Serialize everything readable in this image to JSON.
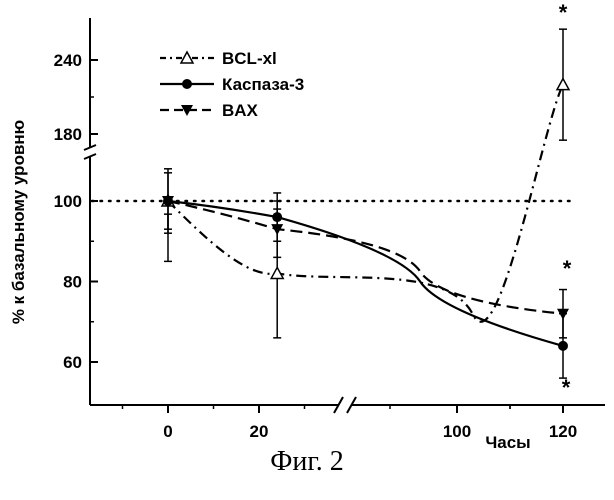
{
  "chart_data": {
    "type": "line",
    "xlabel": "Часы",
    "ylabel": "% к базальному уровню",
    "x_ticks": [
      "0",
      "20",
      "100",
      "120"
    ],
    "y_ticks": [
      "60",
      "80",
      "100",
      "180",
      "240"
    ],
    "x_axis_break": true,
    "y_axis_break": true,
    "ylim": [
      50,
      260
    ],
    "legend_position": "top-left",
    "grid": false,
    "reference_line": {
      "y": 100,
      "style": "dotted"
    },
    "significance_marker": "*",
    "series": [
      {
        "name": "BCL-xl",
        "marker": "open-triangle",
        "line_style": "dash-dot",
        "points": [
          {
            "x": 0,
            "y": 100,
            "err": 15
          },
          {
            "x": 24,
            "y": 82,
            "err": 16
          },
          {
            "x": 120,
            "y": 220,
            "err": 45,
            "significant": true
          }
        ]
      },
      {
        "name": "Каспаза-3",
        "marker": "filled-circle",
        "line_style": "solid",
        "points": [
          {
            "x": 0,
            "y": 100,
            "err": 7
          },
          {
            "x": 24,
            "y": 96,
            "err": 6
          },
          {
            "x": 120,
            "y": 64,
            "err": 8,
            "significant": true
          }
        ]
      },
      {
        "name": "BAX",
        "marker": "filled-down-triangle",
        "line_style": "dashed",
        "points": [
          {
            "x": 0,
            "y": 100,
            "err": 8
          },
          {
            "x": 24,
            "y": 93,
            "err": 7
          },
          {
            "x": 120,
            "y": 72,
            "err": 6,
            "significant": true
          }
        ]
      }
    ]
  },
  "caption": "Фиг. 2"
}
